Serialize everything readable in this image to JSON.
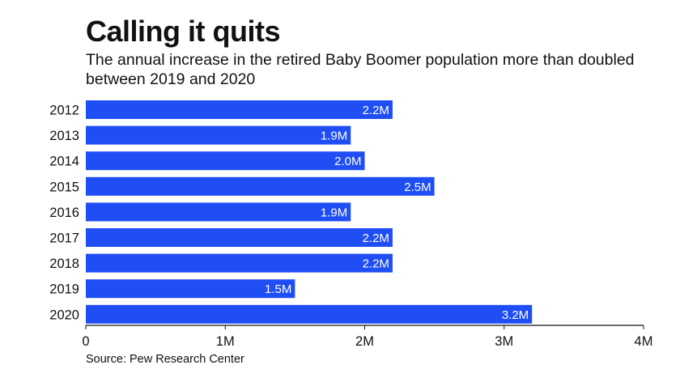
{
  "title": "Calling it quits",
  "subtitle": "The annual increase in the retired Baby Boomer population more than doubled between 2019 and 2020",
  "source": "Source: Pew Research Center",
  "colors": {
    "bar": "#1f4ef5",
    "bar_label": "#ffffff",
    "axis": "#111111"
  },
  "chart_data": {
    "type": "bar",
    "orientation": "horizontal",
    "categories": [
      "2012",
      "2013",
      "2014",
      "2015",
      "2016",
      "2017",
      "2018",
      "2019",
      "2020"
    ],
    "values": [
      2.2,
      1.9,
      2.0,
      2.5,
      1.9,
      2.2,
      2.2,
      1.5,
      3.2
    ],
    "value_labels": [
      "2.2M",
      "1.9M",
      "2.0M",
      "2.5M",
      "1.9M",
      "2.2M",
      "2.2M",
      "1.5M",
      "3.2M"
    ],
    "xlim": [
      0,
      4
    ],
    "xticks": [
      0,
      1,
      2,
      3,
      4
    ],
    "xtick_labels": [
      "0",
      "1M",
      "2M",
      "3M",
      "4M"
    ],
    "grid": false
  }
}
